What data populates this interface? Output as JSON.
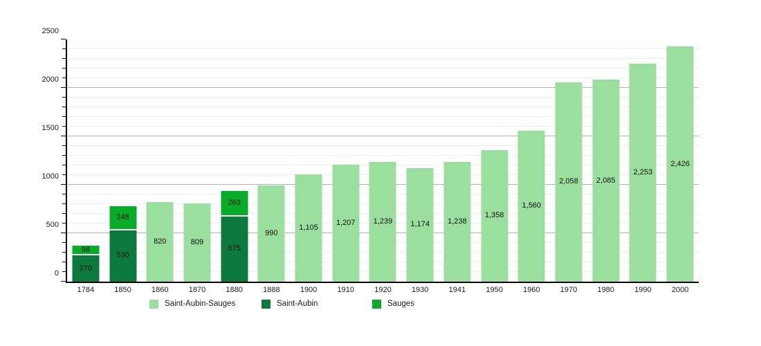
{
  "chart_data": {
    "type": "bar",
    "stacked": true,
    "title": "",
    "xlabel": "",
    "ylabel": "",
    "ylim": [
      0,
      2500
    ],
    "y_major_step": 500,
    "y_minor_step": 100,
    "y_tick_labels": [
      "0",
      "500",
      "1000",
      "1500",
      "2000",
      "2500"
    ],
    "grid": "on",
    "legend_position": "bottom",
    "series_colors": {
      "Saint-Aubin-Sauges": "#9bdf9f",
      "Saint-Aubin": "#0b7a3c",
      "Sauges": "#09ac28"
    },
    "categories": [
      "1784",
      "1850",
      "1860",
      "1870",
      "1880",
      "1888",
      "1900",
      "1910",
      "1920",
      "1930",
      "1941",
      "1950",
      "1960",
      "1970",
      "1980",
      "1990",
      "2000"
    ],
    "bars": [
      {
        "year": "1784",
        "segments": [
          {
            "series": "Saint-Aubin",
            "value": 270,
            "label": "270"
          },
          {
            "series": "Sauges",
            "value": 98,
            "label": "98"
          }
        ]
      },
      {
        "year": "1850",
        "segments": [
          {
            "series": "Saint-Aubin",
            "value": 530,
            "label": "530"
          },
          {
            "series": "Sauges",
            "value": 248,
            "label": "248"
          }
        ]
      },
      {
        "year": "1860",
        "segments": [
          {
            "series": "Saint-Aubin-Sauges",
            "value": 820,
            "label": "820"
          }
        ]
      },
      {
        "year": "1870",
        "segments": [
          {
            "series": "Saint-Aubin-Sauges",
            "value": 809,
            "label": "809"
          }
        ]
      },
      {
        "year": "1880",
        "segments": [
          {
            "series": "Saint-Aubin",
            "value": 675,
            "label": "675"
          },
          {
            "series": "Sauges",
            "value": 263,
            "label": "263"
          }
        ]
      },
      {
        "year": "1888",
        "segments": [
          {
            "series": "Saint-Aubin-Sauges",
            "value": 990,
            "label": "990"
          }
        ]
      },
      {
        "year": "1900",
        "segments": [
          {
            "series": "Saint-Aubin-Sauges",
            "value": 1105,
            "label": "1,105"
          }
        ]
      },
      {
        "year": "1910",
        "segments": [
          {
            "series": "Saint-Aubin-Sauges",
            "value": 1207,
            "label": "1,207"
          }
        ]
      },
      {
        "year": "1920",
        "segments": [
          {
            "series": "Saint-Aubin-Sauges",
            "value": 1239,
            "label": "1,239"
          }
        ]
      },
      {
        "year": "1930",
        "segments": [
          {
            "series": "Saint-Aubin-Sauges",
            "value": 1174,
            "label": "1,174"
          }
        ]
      },
      {
        "year": "1941",
        "segments": [
          {
            "series": "Saint-Aubin-Sauges",
            "value": 1238,
            "label": "1,238"
          }
        ]
      },
      {
        "year": "1950",
        "segments": [
          {
            "series": "Saint-Aubin-Sauges",
            "value": 1358,
            "label": "1,358"
          }
        ]
      },
      {
        "year": "1960",
        "segments": [
          {
            "series": "Saint-Aubin-Sauges",
            "value": 1560,
            "label": "1,560"
          }
        ]
      },
      {
        "year": "1970",
        "segments": [
          {
            "series": "Saint-Aubin-Sauges",
            "value": 2058,
            "label": "2,058"
          }
        ]
      },
      {
        "year": "1980",
        "segments": [
          {
            "series": "Saint-Aubin-Sauges",
            "value": 2085,
            "label": "2,085"
          }
        ]
      },
      {
        "year": "1990",
        "segments": [
          {
            "series": "Saint-Aubin-Sauges",
            "value": 2253,
            "label": "2,253"
          }
        ]
      },
      {
        "year": "2000",
        "segments": [
          {
            "series": "Saint-Aubin-Sauges",
            "value": 2426,
            "label": "2,426"
          }
        ]
      }
    ]
  },
  "legend": {
    "items": [
      {
        "label": "Saint-Aubin-Sauges",
        "color": "#9bdf9f"
      },
      {
        "label": "Saint-Aubin",
        "color": "#0b7a3c"
      },
      {
        "label": "Sauges",
        "color": "#09ac28"
      }
    ]
  }
}
